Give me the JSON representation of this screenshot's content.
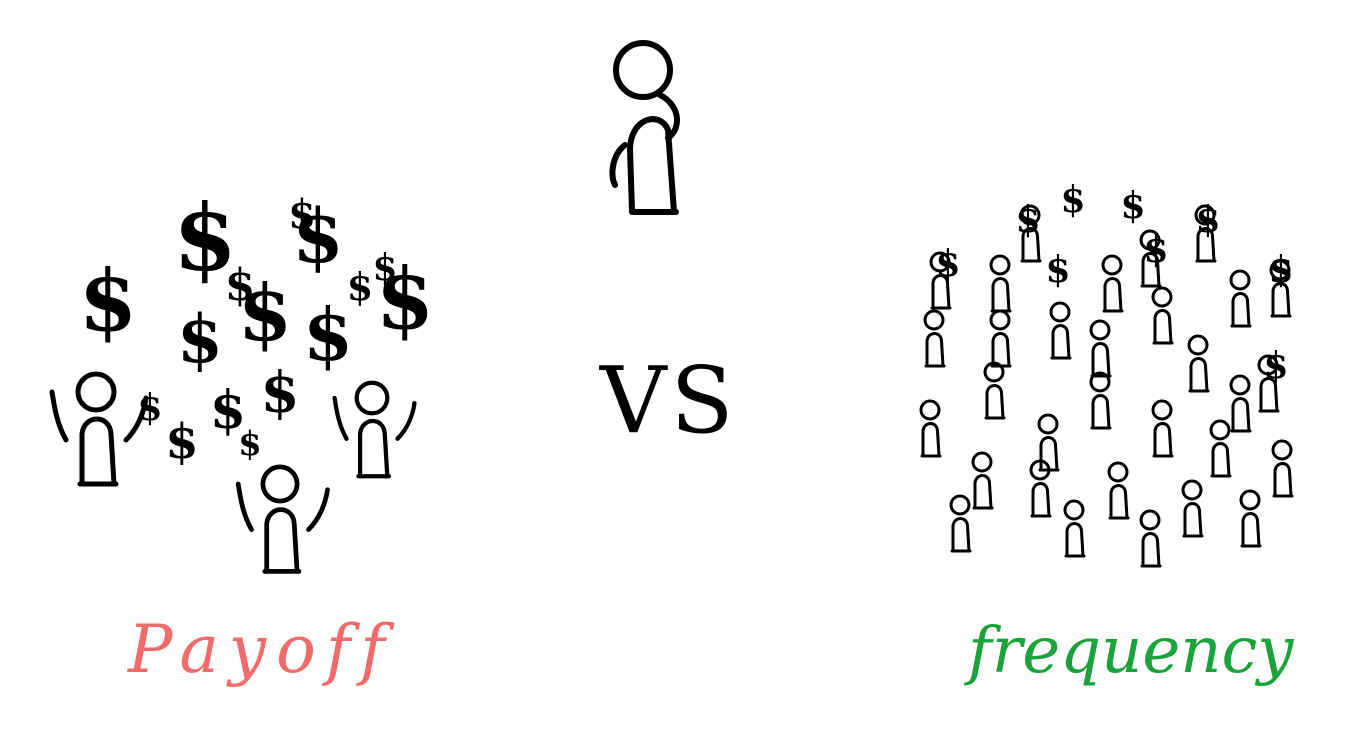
{
  "center": {
    "vs_label": "VS"
  },
  "left_group": {
    "label": "Payoff",
    "label_color": "#f26b6b",
    "people_count": 3,
    "dollar_sign_count": 16,
    "symbol": "$"
  },
  "right_group": {
    "label": "frequency",
    "label_color": "#1aa33a",
    "people_count": 31,
    "dollar_sign_count": 9,
    "symbol": "$"
  },
  "colors": {
    "ink": "#000000",
    "background": "#ffffff"
  }
}
